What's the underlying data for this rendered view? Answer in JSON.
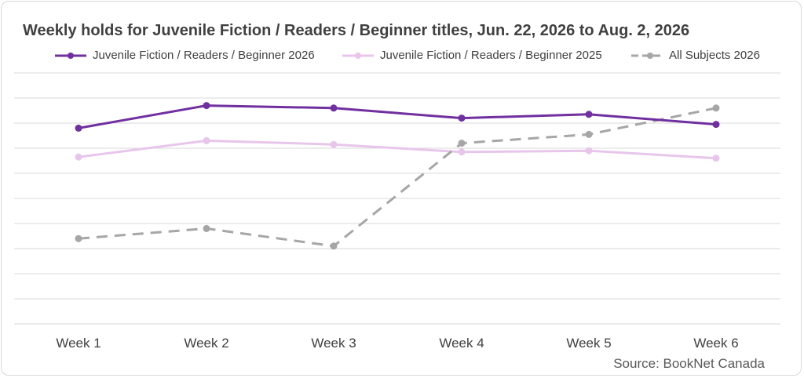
{
  "colors": {
    "series_2026": "#7030a0",
    "series_2025": "#e8c6ec",
    "all_subjects": "#a6a6a6",
    "gridline": "#d9d9d9",
    "text": "#404040"
  },
  "chart_data": {
    "type": "line",
    "title": "Weekly holds for Juvenile Fiction / Readers / Beginner titles, Jun. 22, 2026 to Aug. 2, 2026",
    "categories": [
      "Week 1",
      "Week 2",
      "Week 3",
      "Week 4",
      "Week 5",
      "Week 6"
    ],
    "series": [
      {
        "name": "Juvenile Fiction / Readers / Beginner 2026",
        "style": "solid",
        "color": "#7030a0",
        "values": [
          7.8,
          8.7,
          8.6,
          8.2,
          8.35,
          7.95
        ]
      },
      {
        "name": "Juvenile Fiction / Readers / Beginner 2025",
        "style": "solid",
        "color": "#e8c6ec",
        "values": [
          6.65,
          7.3,
          7.15,
          6.85,
          6.9,
          6.6
        ]
      },
      {
        "name": "All Subjects 2026",
        "style": "dashed",
        "color": "#a6a6a6",
        "values": [
          3.4,
          3.8,
          3.1,
          7.2,
          7.55,
          8.6
        ]
      }
    ],
    "xlabel": "",
    "ylabel": "",
    "ylim": [
      0,
      10
    ],
    "y_gridlines": 10,
    "y_tick_labels_shown": false,
    "grid": true,
    "legend_position": "top"
  },
  "source": "Source: BookNet Canada"
}
